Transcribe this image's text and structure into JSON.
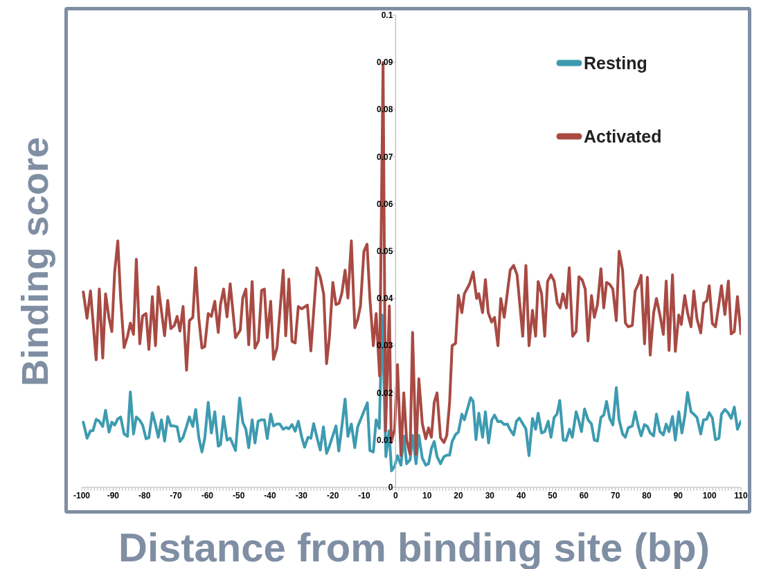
{
  "chart_data": {
    "type": "line",
    "xlabel": "Distance from binding site (bp)",
    "ylabel": "Binding score",
    "xlim": [
      -100,
      110
    ],
    "ylim": [
      0,
      0.1
    ],
    "yticks": [
      0,
      0.01,
      0.02,
      0.03,
      0.04,
      0.05,
      0.06,
      0.07,
      0.08,
      0.09,
      0.1
    ],
    "xticks": [
      -100,
      {
        "value": -99,
        "label": null
      },
      {
        "value": -98,
        "label": null
      },
      {
        "value": -97,
        "label": null
      },
      {
        "value": -96,
        "label": null
      },
      {
        "value": -95,
        "label": null
      },
      {
        "value": -94,
        "label": null
      },
      {
        "value": -93,
        "label": null
      },
      {
        "value": -92,
        "label": null
      },
      {
        "value": -91,
        "label": null
      },
      -90,
      {
        "value": -89,
        "label": null
      },
      {
        "value": -88,
        "label": null
      },
      {
        "value": -87,
        "label": null
      },
      {
        "value": -86,
        "label": null
      },
      {
        "value": -85,
        "label": null
      },
      {
        "value": -84,
        "label": null
      },
      {
        "value": -83,
        "label": null
      },
      {
        "value": -82,
        "label": null
      },
      {
        "value": -81,
        "label": null
      },
      -80,
      {
        "value": -79,
        "label": null
      },
      {
        "value": -78,
        "label": null
      },
      {
        "value": -77,
        "label": null
      },
      {
        "value": -76,
        "label": null
      },
      {
        "value": -75,
        "label": null
      },
      {
        "value": -74,
        "label": null
      },
      {
        "value": -73,
        "label": null
      },
      {
        "value": -72,
        "label": null
      },
      {
        "value": -71,
        "label": null
      },
      -70,
      {
        "value": -69,
        "label": null
      },
      {
        "value": -68,
        "label": null
      },
      {
        "value": -67,
        "label": null
      },
      {
        "value": -66,
        "label": null
      },
      {
        "value": -65,
        "label": null
      },
      {
        "value": -64,
        "label": null
      },
      {
        "value": -63,
        "label": null
      },
      {
        "value": -62,
        "label": null
      },
      {
        "value": -61,
        "label": null
      },
      -60,
      {
        "value": -59,
        "label": null
      },
      {
        "value": -58,
        "label": null
      },
      {
        "value": -57,
        "label": null
      },
      {
        "value": -56,
        "label": null
      },
      {
        "value": -55,
        "label": null
      },
      {
        "value": -54,
        "label": null
      },
      {
        "value": -53,
        "label": null
      },
      {
        "value": -52,
        "label": null
      },
      {
        "value": -51,
        "label": null
      },
      -50,
      {
        "value": -49,
        "label": null
      },
      {
        "value": -48,
        "label": null
      },
      {
        "value": -47,
        "label": null
      },
      {
        "value": -46,
        "label": null
      },
      {
        "value": -45,
        "label": null
      },
      {
        "value": -44,
        "label": null
      },
      {
        "value": -43,
        "label": null
      },
      {
        "value": -42,
        "label": null
      },
      {
        "value": -41,
        "label": null
      },
      -40,
      {
        "value": -39,
        "label": null
      },
      {
        "value": -38,
        "label": null
      },
      {
        "value": -37,
        "label": null
      },
      {
        "value": -36,
        "label": null
      },
      {
        "value": -35,
        "label": null
      },
      {
        "value": -34,
        "label": null
      },
      {
        "value": -33,
        "label": null
      },
      {
        "value": -32,
        "label": null
      },
      {
        "value": -31,
        "label": null
      },
      -30,
      {
        "value": -29,
        "label": null
      },
      {
        "value": -28,
        "label": null
      },
      {
        "value": -27,
        "label": null
      },
      {
        "value": -26,
        "label": null
      },
      {
        "value": -25,
        "label": null
      },
      {
        "value": -24,
        "label": null
      },
      {
        "value": -23,
        "label": null
      },
      {
        "value": -22,
        "label": null
      },
      {
        "value": -21,
        "label": null
      },
      -20,
      {
        "value": -19,
        "label": null
      },
      {
        "value": -18,
        "label": null
      },
      {
        "value": -17,
        "label": null
      },
      {
        "value": -16,
        "label": null
      },
      {
        "value": -15,
        "label": null
      },
      {
        "value": -14,
        "label": null
      },
      {
        "value": -13,
        "label": null
      },
      {
        "value": -12,
        "label": null
      },
      {
        "value": -11,
        "label": null
      },
      -10,
      {
        "value": -9,
        "label": null
      },
      {
        "value": -8,
        "label": null
      },
      {
        "value": -7,
        "label": null
      },
      {
        "value": -6,
        "label": null
      },
      {
        "value": -5,
        "label": null
      },
      {
        "value": -4,
        "label": null
      },
      {
        "value": -3,
        "label": null
      },
      {
        "value": -2,
        "label": null
      },
      {
        "value": -1,
        "label": null
      },
      0,
      {
        "value": 1,
        "label": null
      },
      {
        "value": 2,
        "label": null
      },
      {
        "value": 3,
        "label": null
      },
      {
        "value": 4,
        "label": null
      },
      {
        "value": 5,
        "label": null
      },
      {
        "value": 6,
        "label": null
      },
      {
        "value": 7,
        "label": null
      },
      {
        "value": 8,
        "label": null
      },
      {
        "value": 9,
        "label": null
      },
      10,
      {
        "value": 11,
        "label": null
      },
      {
        "value": 12,
        "label": null
      },
      {
        "value": 13,
        "label": null
      },
      {
        "value": 14,
        "label": null
      },
      {
        "value": 15,
        "label": null
      },
      {
        "value": 16,
        "label": null
      },
      {
        "value": 17,
        "label": null
      },
      {
        "value": 18,
        "label": null
      },
      {
        "value": 19,
        "label": null
      },
      20,
      {
        "value": 21,
        "label": null
      },
      {
        "value": 22,
        "label": null
      },
      {
        "value": 23,
        "label": null
      },
      {
        "value": 24,
        "label": null
      },
      {
        "value": 25,
        "label": null
      },
      {
        "value": 26,
        "label": null
      },
      {
        "value": 27,
        "label": null
      },
      {
        "value": 28,
        "label": null
      },
      {
        "value": 29,
        "label": null
      },
      30,
      {
        "value": 31,
        "label": null
      },
      {
        "value": 32,
        "label": null
      },
      {
        "value": 33,
        "label": null
      },
      {
        "value": 34,
        "label": null
      },
      {
        "value": 35,
        "label": null
      },
      {
        "value": 36,
        "label": null
      },
      {
        "value": 37,
        "label": null
      },
      {
        "value": 38,
        "label": null
      },
      {
        "value": 39,
        "label": null
      },
      40,
      {
        "value": 41,
        "label": null
      },
      {
        "value": 42,
        "label": null
      },
      {
        "value": 43,
        "label": null
      },
      {
        "value": 44,
        "label": null
      },
      {
        "value": 45,
        "label": null
      },
      {
        "value": 46,
        "label": null
      },
      {
        "value": 47,
        "label": null
      },
      {
        "value": 48,
        "label": null
      },
      {
        "value": 49,
        "label": null
      },
      50,
      {
        "value": 51,
        "label": null
      },
      {
        "value": 52,
        "label": null
      },
      {
        "value": 53,
        "label": null
      },
      {
        "value": 54,
        "label": null
      },
      {
        "value": 55,
        "label": null
      },
      {
        "value": 56,
        "label": null
      },
      {
        "value": 57,
        "label": null
      },
      {
        "value": 58,
        "label": null
      },
      {
        "value": 59,
        "label": null
      },
      60,
      {
        "value": 61,
        "label": null
      },
      {
        "value": 62,
        "label": null
      },
      {
        "value": 63,
        "label": null
      },
      {
        "value": 64,
        "label": null
      },
      {
        "value": 65,
        "label": null
      },
      {
        "value": 66,
        "label": null
      },
      {
        "value": 67,
        "label": null
      },
      {
        "value": 68,
        "label": null
      },
      {
        "value": 69,
        "label": null
      },
      70,
      {
        "value": 71,
        "label": null
      },
      {
        "value": 72,
        "label": null
      },
      {
        "value": 73,
        "label": null
      },
      {
        "value": 74,
        "label": null
      },
      {
        "value": 75,
        "label": null
      },
      {
        "value": 76,
        "label": null
      },
      {
        "value": 77,
        "label": null
      },
      {
        "value": 78,
        "label": null
      },
      {
        "value": 79,
        "label": null
      },
      80,
      {
        "value": 81,
        "label": null
      },
      {
        "value": 82,
        "label": null
      },
      {
        "value": 83,
        "label": null
      },
      {
        "value": 84,
        "label": null
      },
      {
        "value": 85,
        "label": null
      },
      {
        "value": 86,
        "label": null
      },
      {
        "value": 87,
        "label": null
      },
      {
        "value": 88,
        "label": null
      },
      {
        "value": 89,
        "label": null
      },
      90,
      {
        "value": 91,
        "label": null
      },
      {
        "value": 92,
        "label": null
      },
      {
        "value": 93,
        "label": null
      },
      {
        "value": 94,
        "label": null
      },
      {
        "value": 95,
        "label": null
      },
      {
        "value": 96,
        "label": null
      },
      {
        "value": 97,
        "label": null
      },
      {
        "value": 98,
        "label": null
      },
      {
        "value": 99,
        "label": null
      },
      100,
      {
        "value": 101,
        "label": null
      },
      {
        "value": 102,
        "label": null
      },
      {
        "value": 103,
        "label": null
      },
      {
        "value": 104,
        "label": null
      },
      {
        "value": 105,
        "label": null
      },
      {
        "value": 106,
        "label": null
      },
      {
        "value": 107,
        "label": null
      },
      {
        "value": 108,
        "label": null
      },
      {
        "value": 109,
        "label": null
      },
      110
    ],
    "legend": "top right",
    "marker": "none",
    "line_style": "solid",
    "series": [
      {
        "name": "Resting",
        "color": "#3d9bb0",
        "x": [
          -99.5,
          -98.3,
          -97.2,
          -96.4,
          -95.4,
          -94.4,
          -93.3,
          -92.4,
          -91.3,
          -90.4,
          -89.5,
          -88.5,
          -87.6,
          -86.5,
          -85.4,
          -84.5,
          -83.5,
          -82.6,
          -81.5,
          -80.6,
          -79.5,
          -78.6,
          -77.5,
          -76.5,
          -75.6,
          -74.6,
          -73.6,
          -72.6,
          -71.6,
          -70.5,
          -69.6,
          -68.7,
          -67.7,
          -66.6,
          -65.7,
          -64.6,
          -63.7,
          -62.7,
          -61.7,
          -60.8,
          -59.7,
          -58.7,
          -57.6,
          -56.5,
          -55.8,
          -54.8,
          -53.7,
          -52.7,
          -51.0,
          -49.7,
          -48.7,
          -47.7,
          -46.8,
          -45.7,
          -44.8,
          -43.8,
          -42.7,
          -41.8,
          -40.9,
          -39.8,
          -38.9,
          -37.8,
          -36.9,
          -35.8,
          -34.8,
          -34.0,
          -33.0,
          -32.0,
          -31.0,
          -29.9,
          -29.0,
          -27.9,
          -27.0,
          -26.1,
          -25.0,
          -24.0,
          -23.0,
          -22.0,
          -21.1,
          -19.0,
          -18.1,
          -17.1,
          -16.1,
          -15.2,
          -14.1,
          -13.0,
          -12.1,
          -9.0,
          -8.2,
          -7.1,
          -6.2,
          -5.2,
          -4.3,
          -3.1,
          -2.1,
          -1.3,
          -0.3,
          0.6,
          1.7,
          2.6,
          3.5,
          4.6,
          5.4,
          6.5,
          7.4,
          8.5,
          9.6,
          10.5,
          11.4,
          12.3,
          13.2,
          14.3,
          15.4,
          16.3,
          17.2,
          18.0,
          19.1,
          20.0,
          21.1,
          21.9,
          23.9,
          24.7,
          25.6,
          26.5,
          27.7,
          28.6,
          29.6,
          30.6,
          31.5,
          32.6,
          33.5,
          34.6,
          35.6,
          36.4,
          37.6,
          38.5,
          39.4,
          40.5,
          41.5,
          42.5,
          43.6,
          44.6,
          45.4,
          46.5,
          47.5,
          48.6,
          49.5,
          50.5,
          51.4,
          52.3,
          53.4,
          54.3,
          55.4,
          56.3,
          57.5,
          58.4,
          59.2,
          60.2,
          61.3,
          62.4,
          63.3,
          64.3,
          65.4,
          66.3,
          67.2,
          68.2,
          69.2,
          70.3,
          71.2,
          72.3,
          73.2,
          74.1,
          75.4,
          76.3,
          77.3,
          78.2,
          79.3,
          80.2,
          81.1,
          82.2,
          83.1,
          84.2,
          85.3,
          86.2,
          87.1,
          88.2,
          89.1,
          90.2,
          91.2,
          92.1,
          93.0,
          94.1,
          95.0,
          96.0,
          97.2,
          98.1,
          99.1,
          99.9,
          100.9,
          101.9,
          103.0,
          103.8,
          104.9,
          106.0,
          106.9,
          107.9,
          108.9,
          110.0
        ],
        "values": [
          0.0138,
          0.0104,
          0.012,
          0.012,
          0.0144,
          0.014,
          0.0129,
          0.0163,
          0.0117,
          0.0138,
          0.0132,
          0.0145,
          0.0149,
          0.0113,
          0.0108,
          0.0202,
          0.0113,
          0.0149,
          0.0142,
          0.0132,
          0.0103,
          0.0105,
          0.0158,
          0.0133,
          0.0106,
          0.0143,
          0.0098,
          0.015,
          0.013,
          0.013,
          0.0128,
          0.0097,
          0.0106,
          0.0129,
          0.0149,
          0.0129,
          0.0165,
          0.0106,
          0.0075,
          0.0104,
          0.018,
          0.0115,
          0.016,
          0.0087,
          0.009,
          0.015,
          0.01,
          0.0104,
          0.0078,
          0.0189,
          0.0138,
          0.0123,
          0.0084,
          0.0143,
          0.0094,
          0.014,
          0.0143,
          0.0143,
          0.0103,
          0.0155,
          0.013,
          0.0134,
          0.0134,
          0.0123,
          0.0127,
          0.0124,
          0.0133,
          0.0119,
          0.014,
          0.0106,
          0.0085,
          0.0106,
          0.0104,
          0.0135,
          0.0104,
          0.0079,
          0.0128,
          0.0072,
          0.0087,
          0.013,
          0.0077,
          0.013,
          0.0187,
          0.0108,
          0.0134,
          0.0084,
          0.0128,
          0.0179,
          0.0078,
          0.0075,
          0.0143,
          0.0125,
          0.0365,
          0.0065,
          0.012,
          0.0035,
          0.0045,
          0.0067,
          0.0047,
          0.0109,
          0.005,
          0.0058,
          0.011,
          0.005,
          0.011,
          0.0062,
          0.0047,
          0.005,
          0.0082,
          0.0097,
          0.0065,
          0.005,
          0.0065,
          0.0068,
          0.0068,
          0.0097,
          0.0112,
          0.0117,
          0.0155,
          0.0143,
          0.019,
          0.0182,
          0.0101,
          0.0157,
          0.0106,
          0.016,
          0.0094,
          0.0142,
          0.0153,
          0.0139,
          0.014,
          0.0133,
          0.0134,
          0.0123,
          0.0111,
          0.014,
          0.0147,
          0.0135,
          0.0124,
          0.0067,
          0.0146,
          0.0123,
          0.0157,
          0.0115,
          0.0118,
          0.014,
          0.0106,
          0.0148,
          0.0155,
          0.0184,
          0.01,
          0.0099,
          0.0123,
          0.0106,
          0.016,
          0.014,
          0.0118,
          0.0166,
          0.0143,
          0.0134,
          0.01,
          0.0098,
          0.0148,
          0.0153,
          0.0182,
          0.0146,
          0.0132,
          0.0211,
          0.0143,
          0.0113,
          0.0106,
          0.0126,
          0.013,
          0.016,
          0.013,
          0.0109,
          0.0133,
          0.0129,
          0.0115,
          0.0109,
          0.0155,
          0.0118,
          0.0111,
          0.0134,
          0.0118,
          0.015,
          0.01,
          0.016,
          0.0115,
          0.015,
          0.0201,
          0.016,
          0.0155,
          0.0148,
          0.0113,
          0.0143,
          0.0144,
          0.0158,
          0.0147,
          0.0101,
          0.0104,
          0.0155,
          0.0165,
          0.0157,
          0.0146,
          0.017,
          0.0123,
          0.014
        ]
      },
      {
        "name": "Activated",
        "color": "#a84a43",
        "x": [
          -99.5,
          -98.3,
          -97.2,
          -95.4,
          -94.4,
          -93.3,
          -92.4,
          -91.3,
          -90.4,
          -89.5,
          -88.5,
          -87.6,
          -86.5,
          -85.4,
          -84.5,
          -83.5,
          -82.6,
          -81.5,
          -80.6,
          -79.5,
          -78.6,
          -77.5,
          -76.5,
          -75.6,
          -74.6,
          -73.6,
          -72.6,
          -71.6,
          -70.5,
          -69.6,
          -68.7,
          -67.7,
          -66.6,
          -65.7,
          -64.6,
          -63.7,
          -62.7,
          -61.7,
          -60.8,
          -59.7,
          -58.7,
          -57.6,
          -56.5,
          -55.8,
          -54.8,
          -53.7,
          -52.7,
          -51.0,
          -49.5,
          -48.7,
          -47.7,
          -46.8,
          -45.7,
          -44.8,
          -43.7,
          -42.7,
          -41.8,
          -40.9,
          -39.8,
          -38.9,
          -37.8,
          -35.8,
          -35.0,
          -34.0,
          -33.0,
          -32.0,
          -31.0,
          -29.9,
          -28.1,
          -27.0,
          -25.1,
          -24.0,
          -22.9,
          -22.0,
          -21.1,
          -20.0,
          -19.0,
          -18.0,
          -17.1,
          -16.1,
          -15.2,
          -14.1,
          -13.0,
          -12.1,
          -11.2,
          -10.1,
          -9.1,
          -8.2,
          -7.1,
          -6.2,
          -5.1,
          -4.0,
          -3.2,
          -2.0,
          -1.4,
          -0.3,
          0.6,
          1.7,
          2.6,
          3.5,
          4.6,
          5.4,
          6.5,
          7.4,
          8.5,
          9.6,
          10.5,
          11.4,
          12.3,
          13.2,
          14.3,
          15.4,
          16.3,
          17.2,
          18.0,
          19.1,
          20.0,
          21.1,
          21.9,
          23.5,
          24.7,
          25.8,
          26.5,
          27.7,
          28.6,
          29.5,
          30.6,
          31.5,
          32.6,
          33.5,
          34.6,
          36.5,
          37.6,
          38.7,
          40.5,
          41.5,
          42.5,
          43.6,
          44.6,
          45.4,
          46.5,
          47.5,
          48.4,
          49.5,
          50.5,
          51.5,
          52.4,
          53.3,
          54.4,
          55.3,
          56.4,
          57.5,
          58.4,
          59.4,
          60.4,
          61.3,
          62.4,
          63.3,
          64.3,
          65.4,
          66.3,
          67.2,
          68.2,
          69.2,
          70.3,
          71.2,
          72.3,
          73.2,
          74.1,
          75.4,
          76.3,
          77.3,
          78.2,
          79.3,
          80.2,
          81.1,
          82.2,
          83.1,
          84.2,
          85.3,
          86.2,
          87.1,
          88.2,
          89.1,
          90.2,
          91.0,
          92.1,
          93.0,
          94.1,
          95.0,
          96.0,
          97.2,
          98.1,
          99.1,
          99.9,
          100.9,
          101.9,
          103.0,
          103.8,
          104.9,
          106.0,
          106.9,
          107.9,
          108.9,
          110.0
        ],
        "values": [
          0.0414,
          0.0358,
          0.0416,
          0.027,
          0.042,
          0.0274,
          0.041,
          0.0358,
          0.033,
          0.0456,
          0.0522,
          0.04,
          0.0296,
          0.032,
          0.0348,
          0.0324,
          0.0483,
          0.0304,
          0.0363,
          0.0368,
          0.0292,
          0.0404,
          0.03,
          0.0425,
          0.0374,
          0.0321,
          0.0396,
          0.0336,
          0.0343,
          0.0362,
          0.0331,
          0.0383,
          0.0248,
          0.0353,
          0.036,
          0.0465,
          0.0358,
          0.0295,
          0.0298,
          0.0368,
          0.0362,
          0.0394,
          0.0328,
          0.0387,
          0.042,
          0.0361,
          0.0431,
          0.0317,
          0.0333,
          0.0401,
          0.042,
          0.0302,
          0.0436,
          0.0295,
          0.031,
          0.0417,
          0.042,
          0.0317,
          0.0394,
          0.0271,
          0.0295,
          0.046,
          0.0321,
          0.0441,
          0.0309,
          0.0306,
          0.0383,
          0.0378,
          0.0386,
          0.0289,
          0.0465,
          0.0445,
          0.0409,
          0.0262,
          0.0317,
          0.0434,
          0.0387,
          0.039,
          0.0412,
          0.046,
          0.0401,
          0.0522,
          0.0338,
          0.0355,
          0.0384,
          0.05,
          0.0515,
          0.04,
          0.03,
          0.0368,
          0.0236,
          0.09,
          0.0119,
          0.0384,
          0.0095,
          0.0123,
          0.026,
          0.0067,
          0.02,
          0.01,
          0.007,
          0.0328,
          0.007,
          0.023,
          0.0135,
          0.0103,
          0.0126,
          0.0106,
          0.018,
          0.02,
          0.0105,
          0.0095,
          0.011,
          0.018,
          0.03,
          0.0305,
          0.0407,
          0.037,
          0.041,
          0.043,
          0.0456,
          0.04,
          0.041,
          0.037,
          0.044,
          0.037,
          0.035,
          0.036,
          0.03,
          0.04,
          0.036,
          0.046,
          0.047,
          0.045,
          0.032,
          0.047,
          0.03,
          0.0375,
          0.032,
          0.0436,
          0.041,
          0.032,
          0.0436,
          0.045,
          0.0437,
          0.039,
          0.038,
          0.041,
          0.038,
          0.0465,
          0.032,
          0.033,
          0.0446,
          0.044,
          0.042,
          0.031,
          0.0406,
          0.036,
          0.0387,
          0.0463,
          0.038,
          0.0434,
          0.043,
          0.042,
          0.0353,
          0.05,
          0.046,
          0.0348,
          0.034,
          0.0343,
          0.0416,
          0.043,
          0.0449,
          0.0304,
          0.0445,
          0.028,
          0.037,
          0.04,
          0.0365,
          0.0324,
          0.0437,
          0.029,
          0.045,
          0.0288,
          0.0365,
          0.0345,
          0.0406,
          0.037,
          0.034,
          0.0416,
          0.0357,
          0.0327,
          0.039,
          0.0395,
          0.0427,
          0.0347,
          0.034,
          0.0389,
          0.0427,
          0.0366,
          0.0437,
          0.0325,
          0.033,
          0.0404,
          0.0325
        ]
      }
    ]
  }
}
